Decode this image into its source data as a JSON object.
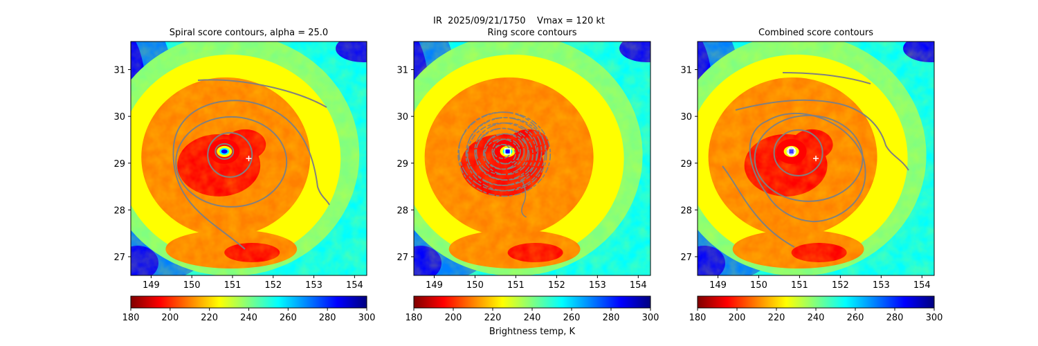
{
  "figure": {
    "suptitle_line1": "IR  2025/09/21/1750    Vmax = 120 kt",
    "colorbar_label": "Brightness temp, K"
  },
  "colorbar": {
    "colormap": "jet_r",
    "range": [
      180,
      300
    ],
    "ticks": [
      180,
      200,
      220,
      240,
      260,
      280,
      300
    ],
    "colors": [
      "#800000",
      "#ff0000",
      "#ff8000",
      "#ffff00",
      "#80ff80",
      "#00ffff",
      "#0080ff",
      "#0000ff",
      "#000080"
    ]
  },
  "chart_data": [
    {
      "type": "contour",
      "title": "Spiral score contours, alpha = 25.0",
      "xlim": [
        148.5,
        154.3
      ],
      "ylim": [
        26.6,
        31.6
      ],
      "xticks": [
        149,
        150,
        151,
        152,
        153,
        154
      ],
      "yticks": [
        27,
        28,
        29,
        30,
        31
      ],
      "grid": false,
      "contour_color": "#808080",
      "markers": [
        {
          "symbol": "plus",
          "lon": 151.4,
          "lat": 29.1,
          "color": "#ffffff"
        }
      ],
      "features": {
        "eye": {
          "lon": 150.8,
          "lat": 29.25
        }
      }
    },
    {
      "type": "contour",
      "title": "Ring score contours",
      "xlim": [
        148.5,
        154.3
      ],
      "ylim": [
        26.6,
        31.6
      ],
      "xticks": [
        149,
        150,
        151,
        152,
        153,
        154
      ],
      "yticks": [
        27,
        28,
        29,
        30,
        31
      ],
      "grid": false,
      "contour_color": "#808080",
      "markers": [
        {
          "symbol": "square",
          "lon": 150.8,
          "lat": 29.25,
          "color": "#ffffff"
        }
      ],
      "features": {
        "eye": {
          "lon": 150.8,
          "lat": 29.25
        }
      }
    },
    {
      "type": "contour",
      "title": "Combined score contours",
      "xlim": [
        148.5,
        154.3
      ],
      "ylim": [
        26.6,
        31.6
      ],
      "xticks": [
        149,
        150,
        151,
        152,
        153,
        154
      ],
      "yticks": [
        27,
        28,
        29,
        30,
        31
      ],
      "grid": false,
      "contour_color": "#808080",
      "markers": [
        {
          "symbol": "circle",
          "lon": 150.8,
          "lat": 29.25,
          "color": "#4040ff"
        },
        {
          "symbol": "square",
          "lon": 150.8,
          "lat": 29.25,
          "color": "#ffffff"
        },
        {
          "symbol": "plus",
          "lon": 151.4,
          "lat": 29.1,
          "color": "#ffffff"
        }
      ],
      "features": {
        "eye": {
          "lon": 150.8,
          "lat": 29.25
        }
      }
    }
  ]
}
